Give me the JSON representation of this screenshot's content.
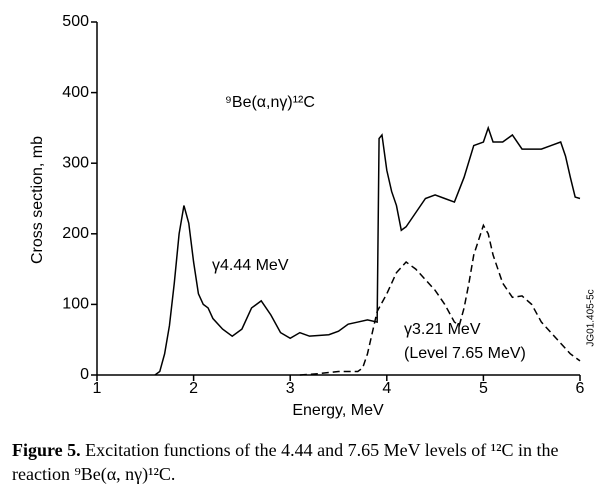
{
  "chart_data": {
    "type": "line",
    "title": "⁹Be(α,nγ)¹²C",
    "x_label": "Energy, MeV",
    "y_label": "Cross section, mb",
    "xlim": [
      1,
      6
    ],
    "xticks": [
      1,
      2,
      3,
      4,
      5,
      6
    ],
    "ylim": [
      0,
      500
    ],
    "yticks": [
      0,
      100,
      200,
      300,
      400,
      500
    ],
    "grid": false,
    "side_label": "JG01.405-5c",
    "annotations": [
      "(Level 7.65 MeV)"
    ],
    "series": [
      {
        "name": "γ4.44 MeV",
        "color": "#000000",
        "dashed": false,
        "x": [
          1.6,
          1.65,
          1.7,
          1.75,
          1.8,
          1.85,
          1.9,
          1.95,
          2.0,
          2.05,
          2.1,
          2.15,
          2.2,
          2.3,
          2.4,
          2.5,
          2.6,
          2.7,
          2.8,
          2.9,
          3.0,
          3.1,
          3.2,
          3.4,
          3.5,
          3.6,
          3.7,
          3.8,
          3.9,
          3.92,
          3.95,
          4.0,
          4.05,
          4.1,
          4.15,
          4.2,
          4.3,
          4.4,
          4.5,
          4.6,
          4.7,
          4.8,
          4.9,
          5.0,
          5.05,
          5.1,
          5.2,
          5.3,
          5.4,
          5.5,
          5.6,
          5.7,
          5.8,
          5.85,
          5.9,
          5.95,
          6.0
        ],
        "values": [
          0,
          5,
          30,
          70,
          130,
          200,
          240,
          215,
          160,
          115,
          100,
          95,
          80,
          65,
          55,
          65,
          95,
          105,
          85,
          60,
          52,
          60,
          55,
          57,
          62,
          72,
          75,
          78,
          75,
          335,
          340,
          290,
          260,
          240,
          205,
          210,
          230,
          250,
          255,
          250,
          245,
          280,
          325,
          330,
          350,
          330,
          330,
          340,
          320,
          320,
          320,
          325,
          330,
          310,
          280,
          252,
          250
        ]
      },
      {
        "name": "γ3.21 MeV",
        "color": "#000000",
        "dashed": true,
        "x": [
          3.1,
          3.3,
          3.5,
          3.7,
          3.75,
          3.8,
          3.85,
          3.9,
          4.0,
          4.1,
          4.2,
          4.3,
          4.4,
          4.5,
          4.6,
          4.7,
          4.75,
          4.8,
          4.85,
          4.9,
          5.0,
          5.05,
          5.1,
          5.2,
          5.3,
          5.4,
          5.5,
          5.6,
          5.7,
          5.8,
          5.9,
          6.0
        ],
        "values": [
          0,
          2,
          5,
          5,
          10,
          30,
          60,
          90,
          115,
          145,
          160,
          150,
          135,
          120,
          100,
          75,
          70,
          95,
          130,
          170,
          212,
          200,
          170,
          130,
          110,
          112,
          100,
          75,
          60,
          45,
          30,
          20
        ]
      }
    ]
  },
  "caption": {
    "label": "Figure 5.",
    "text": "Excitation functions of the 4.44 and 7.65 MeV levels of ¹²C in the reaction ⁹Be(α, nγ)¹²C."
  }
}
